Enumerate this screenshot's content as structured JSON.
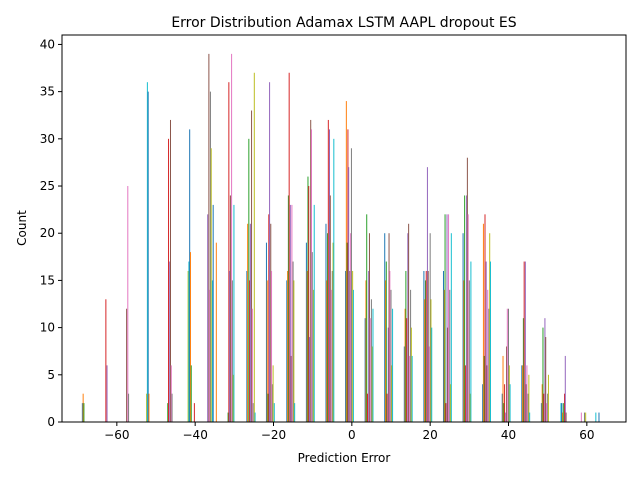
{
  "chart_data": {
    "type": "bar",
    "title": "Error Distribution  Adamax LSTM AAPL dropout ES",
    "xlabel": "Prediction Error",
    "ylabel": "Count",
    "xlim": [
      -74,
      70
    ],
    "ylim": [
      0,
      41
    ],
    "xticks": [
      -60,
      -40,
      -20,
      0,
      20,
      40,
      60
    ],
    "yticks": [
      0,
      5,
      10,
      15,
      20,
      25,
      30,
      35,
      40
    ],
    "grid": false,
    "legend": "none",
    "palette": [
      "#1f77b4",
      "#ff7f0e",
      "#2ca02c",
      "#d62728",
      "#9467bd",
      "#8c564b",
      "#e377c2",
      "#7f7f7f",
      "#bcbd22",
      "#17becf"
    ],
    "bars": [
      {
        "x": -68.8,
        "value": 2
      },
      {
        "x": -68.6,
        "value": 3
      },
      {
        "x": -68.4,
        "value": 2
      },
      {
        "x": -62.8,
        "value": 13
      },
      {
        "x": -62.5,
        "value": 6
      },
      {
        "x": -57.5,
        "value": 12
      },
      {
        "x": -57.2,
        "value": 25
      },
      {
        "x": -57.0,
        "value": 3
      },
      {
        "x": -52.4,
        "value": 3
      },
      {
        "x": -52.2,
        "value": 36
      },
      {
        "x": -52.0,
        "value": 35
      },
      {
        "x": -51.8,
        "value": 3
      },
      {
        "x": -47.0,
        "value": 2
      },
      {
        "x": -46.8,
        "value": 30
      },
      {
        "x": -46.5,
        "value": 17
      },
      {
        "x": -46.3,
        "value": 32
      },
      {
        "x": -46.1,
        "value": 6
      },
      {
        "x": -45.9,
        "value": 3
      },
      {
        "x": -41.8,
        "value": 16
      },
      {
        "x": -41.6,
        "value": 17
      },
      {
        "x": -41.4,
        "value": 31
      },
      {
        "x": -41.2,
        "value": 18
      },
      {
        "x": -41.0,
        "value": 6
      },
      {
        "x": -40.2,
        "value": 2
      },
      {
        "x": -36.8,
        "value": 22
      },
      {
        "x": -36.5,
        "value": 39
      },
      {
        "x": -36.3,
        "value": 14
      },
      {
        "x": -36.1,
        "value": 35
      },
      {
        "x": -35.9,
        "value": 29
      },
      {
        "x": -35.6,
        "value": 15
      },
      {
        "x": -35.4,
        "value": 23
      },
      {
        "x": -34.6,
        "value": 19
      },
      {
        "x": -31.6,
        "value": 1
      },
      {
        "x": -31.4,
        "value": 36
      },
      {
        "x": -31.2,
        "value": 16
      },
      {
        "x": -31.0,
        "value": 24
      },
      {
        "x": -30.7,
        "value": 39
      },
      {
        "x": -30.5,
        "value": 15
      },
      {
        "x": -30.3,
        "value": 5
      },
      {
        "x": -30.1,
        "value": 23
      },
      {
        "x": -26.8,
        "value": 16
      },
      {
        "x": -26.6,
        "value": 21
      },
      {
        "x": -26.3,
        "value": 30
      },
      {
        "x": -26.1,
        "value": 15
      },
      {
        "x": -25.9,
        "value": 21
      },
      {
        "x": -25.6,
        "value": 33
      },
      {
        "x": -25.4,
        "value": 12
      },
      {
        "x": -25.2,
        "value": 2
      },
      {
        "x": -24.9,
        "value": 37
      },
      {
        "x": -24.7,
        "value": 1
      },
      {
        "x": -21.8,
        "value": 19
      },
      {
        "x": -21.6,
        "value": 15
      },
      {
        "x": -21.4,
        "value": 3
      },
      {
        "x": -21.2,
        "value": 22
      },
      {
        "x": -21.0,
        "value": 36
      },
      {
        "x": -20.7,
        "value": 21
      },
      {
        "x": -20.5,
        "value": 16
      },
      {
        "x": -20.3,
        "value": 4
      },
      {
        "x": -20.1,
        "value": 6
      },
      {
        "x": -19.8,
        "value": 2
      },
      {
        "x": -16.6,
        "value": 15
      },
      {
        "x": -16.4,
        "value": 16
      },
      {
        "x": -16.2,
        "value": 24
      },
      {
        "x": -16.0,
        "value": 37
      },
      {
        "x": -15.7,
        "value": 23
      },
      {
        "x": -15.5,
        "value": 7
      },
      {
        "x": -15.3,
        "value": 23
      },
      {
        "x": -15.0,
        "value": 17
      },
      {
        "x": -14.8,
        "value": 15
      },
      {
        "x": -14.6,
        "value": 2
      },
      {
        "x": -11.6,
        "value": 19
      },
      {
        "x": -11.4,
        "value": 16
      },
      {
        "x": -11.2,
        "value": 26
      },
      {
        "x": -11.0,
        "value": 25
      },
      {
        "x": -10.8,
        "value": 9
      },
      {
        "x": -10.5,
        "value": 32
      },
      {
        "x": -10.3,
        "value": 31
      },
      {
        "x": -10.1,
        "value": 18
      },
      {
        "x": -9.8,
        "value": 14
      },
      {
        "x": -9.6,
        "value": 23
      },
      {
        "x": -6.6,
        "value": 21
      },
      {
        "x": -6.4,
        "value": 15
      },
      {
        "x": -6.2,
        "value": 20
      },
      {
        "x": -6.0,
        "value": 32
      },
      {
        "x": -5.7,
        "value": 31
      },
      {
        "x": -5.5,
        "value": 24
      },
      {
        "x": -5.3,
        "value": 14
      },
      {
        "x": -5.0,
        "value": 16
      },
      {
        "x": -4.8,
        "value": 19
      },
      {
        "x": -4.6,
        "value": 30
      },
      {
        "x": -1.6,
        "value": 16
      },
      {
        "x": -1.4,
        "value": 34
      },
      {
        "x": -1.2,
        "value": 19
      },
      {
        "x": -1.0,
        "value": 31
      },
      {
        "x": -0.8,
        "value": 27
      },
      {
        "x": -0.5,
        "value": 16
      },
      {
        "x": -0.3,
        "value": 20
      },
      {
        "x": -0.1,
        "value": 29
      },
      {
        "x": 0.2,
        "value": 16
      },
      {
        "x": 0.4,
        "value": 14
      },
      {
        "x": 3.4,
        "value": 11
      },
      {
        "x": 3.6,
        "value": 15
      },
      {
        "x": 3.8,
        "value": 22
      },
      {
        "x": 4.0,
        "value": 3
      },
      {
        "x": 4.3,
        "value": 16
      },
      {
        "x": 4.5,
        "value": 20
      },
      {
        "x": 4.7,
        "value": 11
      },
      {
        "x": 5.0,
        "value": 13
      },
      {
        "x": 5.2,
        "value": 8
      },
      {
        "x": 5.4,
        "value": 12
      },
      {
        "x": 8.4,
        "value": 20
      },
      {
        "x": 8.6,
        "value": 15
      },
      {
        "x": 8.8,
        "value": 17
      },
      {
        "x": 9.0,
        "value": 3
      },
      {
        "x": 9.3,
        "value": 10
      },
      {
        "x": 9.5,
        "value": 20
      },
      {
        "x": 9.7,
        "value": 16
      },
      {
        "x": 10.0,
        "value": 14
      },
      {
        "x": 10.2,
        "value": 6
      },
      {
        "x": 10.4,
        "value": 12
      },
      {
        "x": 13.4,
        "value": 8
      },
      {
        "x": 13.6,
        "value": 12
      },
      {
        "x": 13.8,
        "value": 16
      },
      {
        "x": 14.0,
        "value": 11
      },
      {
        "x": 14.3,
        "value": 20
      },
      {
        "x": 14.5,
        "value": 21
      },
      {
        "x": 14.7,
        "value": 7
      },
      {
        "x": 15.0,
        "value": 14
      },
      {
        "x": 15.2,
        "value": 10
      },
      {
        "x": 15.4,
        "value": 7
      },
      {
        "x": 18.4,
        "value": 16
      },
      {
        "x": 18.6,
        "value": 13
      },
      {
        "x": 18.8,
        "value": 15
      },
      {
        "x": 19.0,
        "value": 16
      },
      {
        "x": 19.3,
        "value": 27
      },
      {
        "x": 19.5,
        "value": 16
      },
      {
        "x": 19.7,
        "value": 8
      },
      {
        "x": 20.0,
        "value": 20
      },
      {
        "x": 20.2,
        "value": 13
      },
      {
        "x": 20.4,
        "value": 10
      },
      {
        "x": 23.4,
        "value": 16
      },
      {
        "x": 23.6,
        "value": 14
      },
      {
        "x": 23.8,
        "value": 22
      },
      {
        "x": 24.0,
        "value": 2
      },
      {
        "x": 24.3,
        "value": 22
      },
      {
        "x": 24.5,
        "value": 10
      },
      {
        "x": 24.7,
        "value": 22
      },
      {
        "x": 25.0,
        "value": 14
      },
      {
        "x": 25.2,
        "value": 4
      },
      {
        "x": 25.4,
        "value": 20
      },
      {
        "x": 28.4,
        "value": 20
      },
      {
        "x": 28.6,
        "value": 15
      },
      {
        "x": 28.8,
        "value": 24
      },
      {
        "x": 29.0,
        "value": 6
      },
      {
        "x": 29.3,
        "value": 24
      },
      {
        "x": 29.5,
        "value": 28
      },
      {
        "x": 29.7,
        "value": 22
      },
      {
        "x": 30.0,
        "value": 15
      },
      {
        "x": 30.2,
        "value": 3
      },
      {
        "x": 30.4,
        "value": 17
      },
      {
        "x": 33.4,
        "value": 4
      },
      {
        "x": 33.6,
        "value": 21
      },
      {
        "x": 33.8,
        "value": 7
      },
      {
        "x": 34.0,
        "value": 22
      },
      {
        "x": 34.3,
        "value": 17
      },
      {
        "x": 34.5,
        "value": 6
      },
      {
        "x": 34.7,
        "value": 14
      },
      {
        "x": 35.0,
        "value": 12
      },
      {
        "x": 35.2,
        "value": 20
      },
      {
        "x": 35.4,
        "value": 17
      },
      {
        "x": 38.4,
        "value": 3
      },
      {
        "x": 38.6,
        "value": 7
      },
      {
        "x": 38.8,
        "value": 2
      },
      {
        "x": 39.0,
        "value": 4
      },
      {
        "x": 39.3,
        "value": 1
      },
      {
        "x": 39.5,
        "value": 8
      },
      {
        "x": 39.7,
        "value": 12
      },
      {
        "x": 40.0,
        "value": 12
      },
      {
        "x": 40.2,
        "value": 6
      },
      {
        "x": 40.4,
        "value": 4
      },
      {
        "x": 43.4,
        "value": 6
      },
      {
        "x": 43.6,
        "value": 6
      },
      {
        "x": 43.8,
        "value": 11
      },
      {
        "x": 44.0,
        "value": 17
      },
      {
        "x": 44.3,
        "value": 17
      },
      {
        "x": 44.5,
        "value": 4
      },
      {
        "x": 44.7,
        "value": 6
      },
      {
        "x": 45.0,
        "value": 3
      },
      {
        "x": 45.2,
        "value": 5
      },
      {
        "x": 45.4,
        "value": 1
      },
      {
        "x": 48.4,
        "value": 2
      },
      {
        "x": 48.6,
        "value": 4
      },
      {
        "x": 48.8,
        "value": 10
      },
      {
        "x": 49.0,
        "value": 3
      },
      {
        "x": 49.3,
        "value": 11
      },
      {
        "x": 49.5,
        "value": 9
      },
      {
        "x": 49.7,
        "value": 2
      },
      {
        "x": 50.0,
        "value": 3
      },
      {
        "x": 50.2,
        "value": 5
      },
      {
        "x": 53.4,
        "value": 2
      },
      {
        "x": 53.6,
        "value": 2
      },
      {
        "x": 53.8,
        "value": 1
      },
      {
        "x": 54.0,
        "value": 2
      },
      {
        "x": 54.3,
        "value": 3
      },
      {
        "x": 54.5,
        "value": 7
      },
      {
        "x": 54.7,
        "value": 1
      },
      {
        "x": 58.6,
        "value": 1
      },
      {
        "x": 59.4,
        "value": 1
      },
      {
        "x": 59.7,
        "value": 1
      },
      {
        "x": 62.3,
        "value": 1
      },
      {
        "x": 63.1,
        "value": 1
      }
    ]
  }
}
